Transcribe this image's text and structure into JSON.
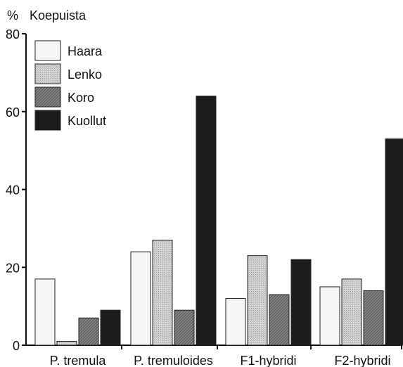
{
  "chart_data": {
    "type": "bar",
    "ylabel_unit": "%",
    "ylabel": "Koepuista",
    "categories": [
      "P. tremula",
      "P. tremuloides",
      "F1-hybridi",
      "F2-hybridi"
    ],
    "series": [
      {
        "name": "Haara",
        "values": [
          17,
          24,
          12,
          15
        ],
        "color": "#f2f2f2"
      },
      {
        "name": "Lenko",
        "values": [
          1,
          27,
          23,
          17
        ],
        "color": "#cfcfcf"
      },
      {
        "name": "Koro",
        "values": [
          7,
          9,
          13,
          14
        ],
        "color": "#8a8a8a"
      },
      {
        "name": "Kuollut",
        "values": [
          9,
          64,
          22,
          53
        ],
        "color": "#1c1c1c"
      }
    ],
    "ylim": [
      0,
      80
    ],
    "yticks": [
      0,
      20,
      40,
      60,
      80
    ],
    "legend": "top-left",
    "grid": false
  }
}
